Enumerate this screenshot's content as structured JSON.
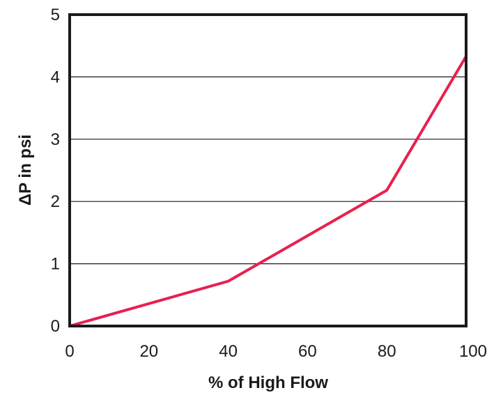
{
  "chart_data": {
    "type": "line",
    "title": "",
    "xlabel": "% of High Flow",
    "ylabel": "ΔP in psi",
    "xlim": [
      0,
      100
    ],
    "ylim": [
      0,
      5
    ],
    "x_ticks": [
      "0",
      "20",
      "40",
      "60",
      "80",
      "100"
    ],
    "y_ticks": [
      "0",
      "1",
      "2",
      "3",
      "4",
      "5"
    ],
    "grid": "horizontal",
    "series": [
      {
        "color": "#e8204f",
        "points": [
          {
            "x": 0,
            "y": 0
          },
          {
            "x": 40,
            "y": 0.72
          },
          {
            "x": 80,
            "y": 2.18
          },
          {
            "x": 100,
            "y": 4.33
          }
        ]
      }
    ]
  }
}
